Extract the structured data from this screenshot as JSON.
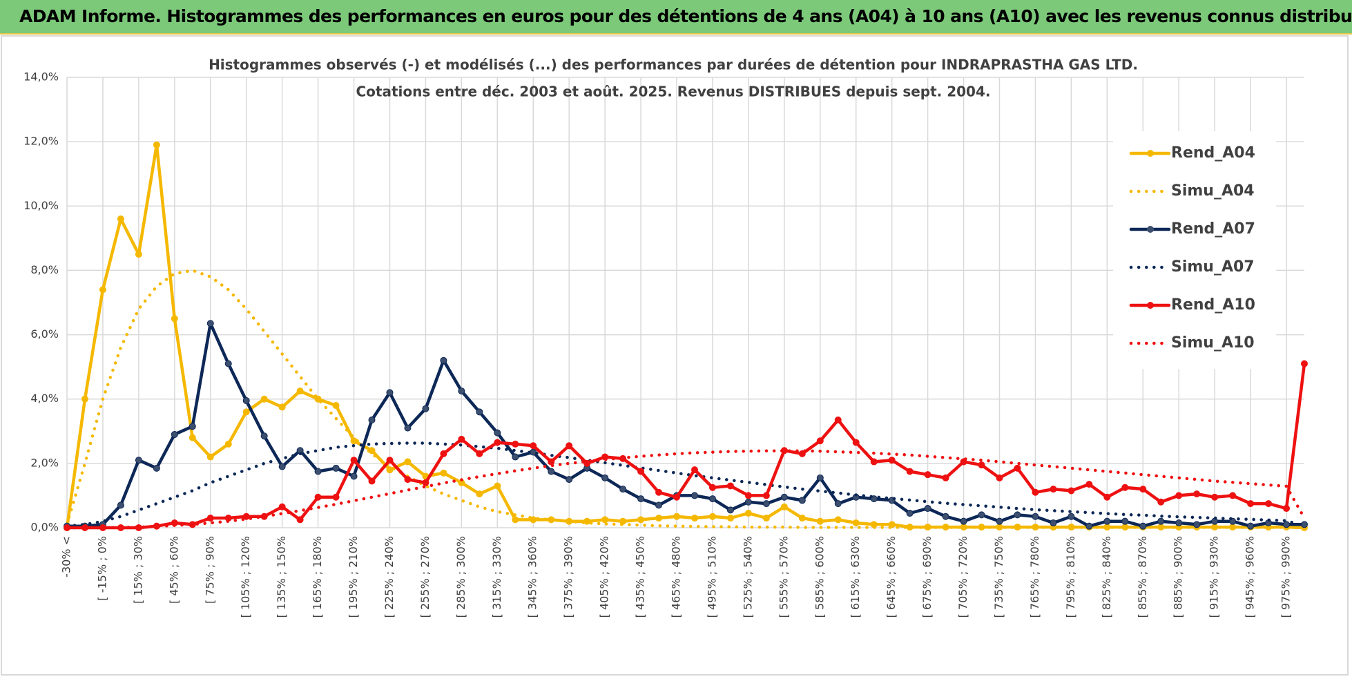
{
  "header": {
    "title": "ADAM Informe. Histogrammes des performances en euros pour des détentions de 4 ans (A04) à 10 ans (A10) avec les revenus connus distribués"
  },
  "chart_data": {
    "type": "line",
    "title": "Histogrammes observés (-) et modélisés (...) des performances par durées de détention pour INDRAPRASTHA GAS LTD.",
    "subtitle": "Cotations entre déc. 2003 et août. 2025.  Revenus DISTRIBUES depuis sept. 2004.",
    "categories": [
      "-30% <",
      null,
      "[ -15% ; 0%",
      null,
      "[ 15% ; 30%",
      null,
      "[ 45% ; 60%",
      null,
      "[ 75% ; 90%",
      null,
      "[ 105% ; 120%",
      null,
      "[ 135% ; 150%",
      null,
      "[ 165% ; 180%",
      null,
      "[ 195% ; 210%",
      null,
      "[ 225% ; 240%",
      null,
      "[ 255% ; 270%",
      null,
      "[ 285% ; 300%",
      null,
      "[ 315% ; 330%",
      null,
      "[ 345% ; 360%",
      null,
      "[ 375% ; 390%",
      null,
      "[ 405% ; 420%",
      null,
      "[ 435% ; 450%",
      null,
      "[ 465% ; 480%",
      null,
      "[ 495% ; 510%",
      null,
      "[ 525% ; 540%",
      null,
      "[ 555% ; 570%",
      null,
      "[ 585% ; 600%",
      null,
      "[ 615% ; 630%",
      null,
      "[ 645% ; 660%",
      null,
      "[ 675% ; 690%",
      null,
      "[ 705% ; 720%",
      null,
      "[ 735% ; 750%",
      null,
      "[ 765% ; 780%",
      null,
      "[ 795% ; 810%",
      null,
      "[ 825% ; 840%",
      null,
      "[ 855% ; 870%",
      null,
      "[ 885% ; 900%",
      null,
      "[ 915% ; 930%",
      null,
      "[ 945% ; 960%",
      null,
      "[ 975% ; 990%",
      null
    ],
    "ylim": [
      0,
      14
    ],
    "yticks": [
      {
        "value": 0,
        "label": "0,0%"
      },
      {
        "value": 2,
        "label": "2,0%"
      },
      {
        "value": 4,
        "label": "4,0%"
      },
      {
        "value": 6,
        "label": "6,0%"
      },
      {
        "value": 8,
        "label": "8,0%"
      },
      {
        "value": 10,
        "label": "10,0%"
      },
      {
        "value": 12,
        "label": "12,0%"
      },
      {
        "value": 14,
        "label": "14,0%"
      }
    ],
    "grid": true,
    "legend": "right",
    "series": [
      {
        "name": "Rend_A04",
        "color": "#f5b800",
        "style": "solid",
        "markers": true,
        "values": [
          0,
          4.0,
          7.4,
          9.6,
          8.5,
          11.9,
          6.5,
          2.8,
          2.2,
          2.6,
          3.6,
          4.0,
          3.75,
          4.25,
          4.0,
          3.8,
          2.7,
          2.4,
          1.8,
          2.05,
          1.6,
          1.7,
          1.4,
          1.05,
          1.3,
          0.25,
          0.25,
          0.25,
          0.2,
          0.2,
          0.25,
          0.2,
          0.25,
          0.3,
          0.35,
          0.3,
          0.35,
          0.3,
          0.45,
          0.3,
          0.65,
          0.3,
          0.2,
          0.25,
          0.15,
          0.1,
          0.1,
          0.02,
          0.02,
          0.02,
          0.02,
          0.02,
          0.02,
          0.02,
          0.02,
          0.02,
          0.02,
          0.02,
          0.02,
          0.02,
          0.02,
          0.02,
          0.02,
          0.02,
          0.02,
          0.02,
          0.02,
          0.02,
          0.02,
          0
        ]
      },
      {
        "name": "Simu_A04",
        "color": "#f5b800",
        "style": "dotted",
        "markers": false,
        "values": [
          0.1,
          2.0,
          4.0,
          5.6,
          6.8,
          7.5,
          7.9,
          8.0,
          7.8,
          7.4,
          6.8,
          6.1,
          5.4,
          4.7,
          4.0,
          3.4,
          2.8,
          2.3,
          1.9,
          1.6,
          1.3,
          1.05,
          0.85,
          0.65,
          0.5,
          0.4,
          0.3,
          0.25,
          0.2,
          0.15,
          0.12,
          0.1,
          0.08,
          0.06,
          0.05,
          0.04,
          0.03,
          0.03,
          0.02,
          0.02,
          0.02,
          0.01,
          0.01,
          0.01,
          0.01,
          0.01,
          0.01,
          0.01,
          0.01,
          0.01,
          0.01,
          0.01,
          0.01,
          0.01,
          0.01,
          0.01,
          0.01,
          0.01,
          0.01,
          0.01,
          0.01,
          0.01,
          0.01,
          0.01,
          0.01,
          0.01,
          0.01,
          0.01,
          0.01,
          0
        ]
      },
      {
        "name": "Rend_A07",
        "color": "#0d2857",
        "style": "solid",
        "markers": true,
        "values": [
          0.05,
          0.05,
          0.1,
          0.7,
          2.1,
          1.85,
          2.9,
          3.15,
          6.35,
          5.1,
          3.95,
          2.85,
          1.9,
          2.4,
          1.75,
          1.85,
          1.6,
          3.35,
          4.2,
          3.1,
          3.7,
          5.2,
          4.25,
          3.6,
          2.95,
          2.2,
          2.35,
          1.75,
          1.5,
          1.85,
          1.55,
          1.2,
          0.9,
          0.7,
          1.0,
          1.0,
          0.9,
          0.55,
          0.8,
          0.75,
          0.95,
          0.85,
          1.55,
          0.75,
          0.95,
          0.9,
          0.85,
          0.45,
          0.6,
          0.35,
          0.2,
          0.4,
          0.2,
          0.4,
          0.35,
          0.15,
          0.35,
          0.05,
          0.2,
          0.2,
          0.05,
          0.2,
          0.15,
          0.1,
          0.2,
          0.2,
          0.05,
          0.15,
          0.1,
          0.1
        ]
      },
      {
        "name": "Simu_A07",
        "color": "#0d2857",
        "style": "dotted",
        "markers": false,
        "values": [
          0.05,
          0.1,
          0.2,
          0.35,
          0.55,
          0.75,
          0.95,
          1.15,
          1.4,
          1.6,
          1.8,
          2.0,
          2.15,
          2.3,
          2.4,
          2.5,
          2.55,
          2.6,
          2.62,
          2.63,
          2.63,
          2.6,
          2.57,
          2.52,
          2.47,
          2.4,
          2.33,
          2.25,
          2.18,
          2.1,
          2.02,
          1.94,
          1.86,
          1.78,
          1.7,
          1.62,
          1.55,
          1.48,
          1.41,
          1.34,
          1.27,
          1.2,
          1.14,
          1.08,
          1.02,
          0.96,
          0.91,
          0.86,
          0.81,
          0.76,
          0.72,
          0.68,
          0.64,
          0.6,
          0.56,
          0.53,
          0.5,
          0.47,
          0.44,
          0.41,
          0.39,
          0.36,
          0.34,
          0.32,
          0.3,
          0.28,
          0.26,
          0.24,
          0.22,
          0.05
        ]
      },
      {
        "name": "Rend_A10",
        "color": "#ee1111",
        "style": "solid",
        "markers": true,
        "values": [
          0,
          0,
          0,
          0,
          0,
          0.05,
          0.15,
          0.1,
          0.3,
          0.3,
          0.35,
          0.35,
          0.65,
          0.25,
          0.95,
          0.95,
          2.1,
          1.45,
          2.1,
          1.5,
          1.4,
          2.3,
          2.75,
          2.3,
          2.65,
          2.6,
          2.55,
          2.05,
          2.55,
          2.0,
          2.2,
          2.15,
          1.75,
          1.1,
          0.95,
          1.8,
          1.25,
          1.3,
          1.0,
          1.0,
          2.4,
          2.3,
          2.7,
          3.35,
          2.65,
          2.05,
          2.1,
          1.75,
          1.65,
          1.55,
          2.05,
          1.95,
          1.55,
          1.85,
          1.1,
          1.2,
          1.15,
          1.35,
          0.95,
          1.25,
          1.2,
          0.8,
          1.0,
          1.05,
          0.95,
          1.0,
          0.75,
          0.75,
          0.6,
          5.1
        ]
      },
      {
        "name": "Simu_A10",
        "color": "#ee1111",
        "style": "dotted",
        "markers": false,
        "values": [
          0,
          0,
          0,
          0.01,
          0.02,
          0.04,
          0.07,
          0.1,
          0.15,
          0.2,
          0.27,
          0.35,
          0.44,
          0.53,
          0.63,
          0.73,
          0.84,
          0.95,
          1.06,
          1.17,
          1.28,
          1.39,
          1.49,
          1.59,
          1.68,
          1.77,
          1.85,
          1.93,
          2.0,
          2.06,
          2.12,
          2.17,
          2.22,
          2.26,
          2.3,
          2.33,
          2.35,
          2.37,
          2.38,
          2.39,
          2.39,
          2.39,
          2.38,
          2.36,
          2.34,
          2.32,
          2.29,
          2.26,
          2.22,
          2.18,
          2.14,
          2.1,
          2.05,
          2.0,
          1.95,
          1.9,
          1.85,
          1.8,
          1.75,
          1.7,
          1.65,
          1.6,
          1.55,
          1.5,
          1.45,
          1.41,
          1.37,
          1.33,
          1.29,
          0.3
        ]
      }
    ]
  }
}
